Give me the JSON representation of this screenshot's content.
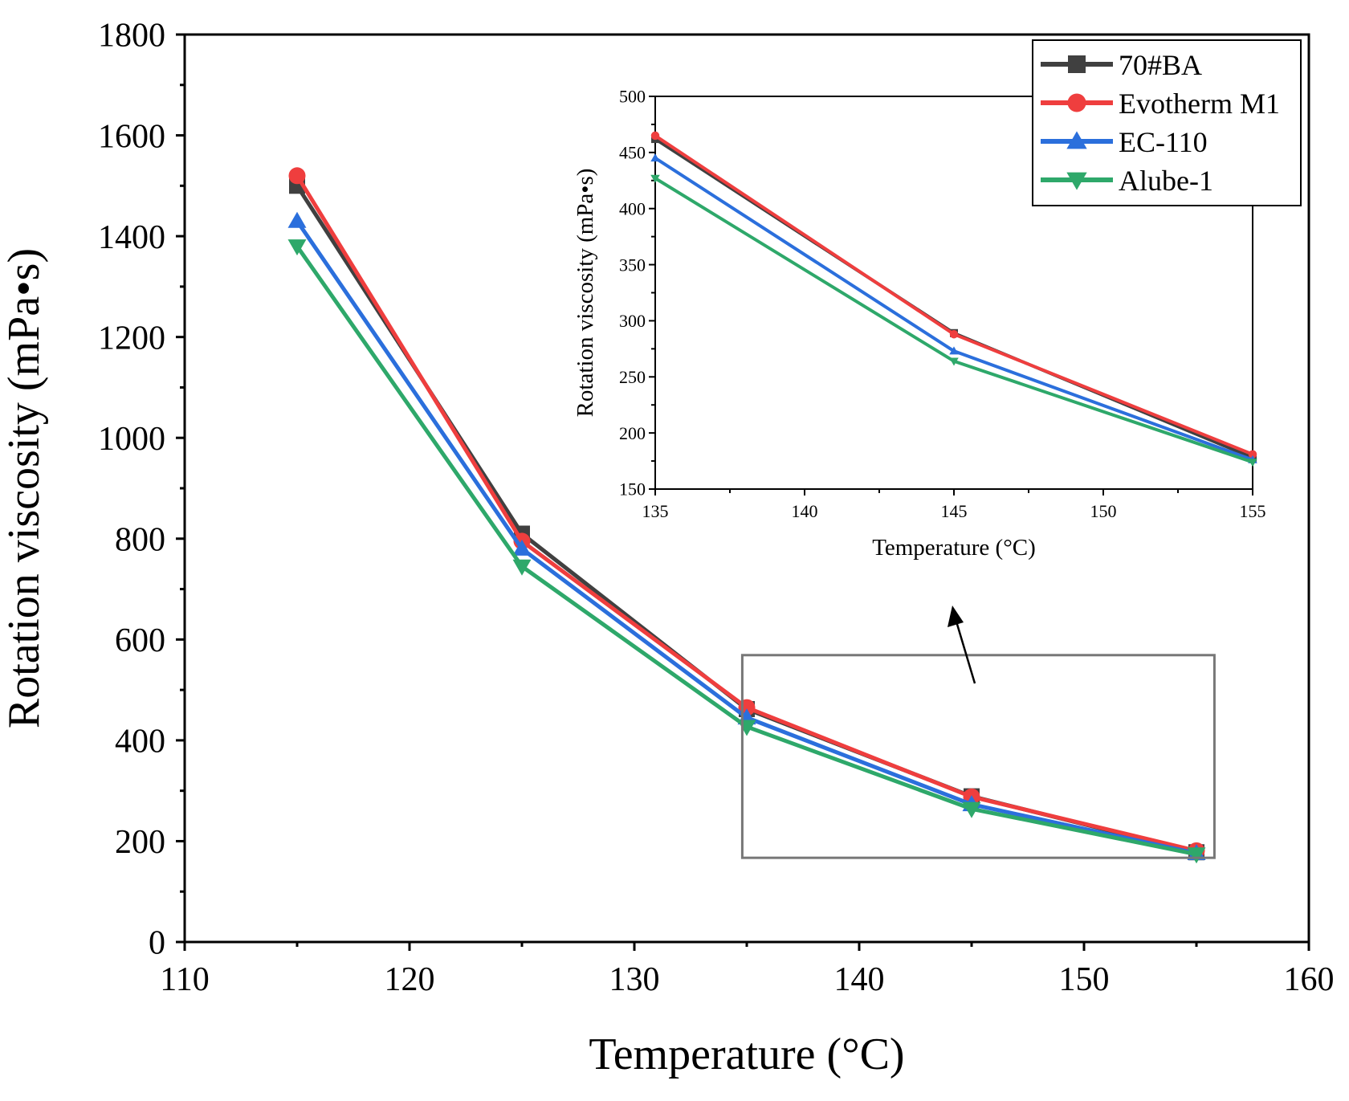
{
  "chart_data": [
    {
      "id": "main",
      "type": "line",
      "xlabel": "Temperature (°C)",
      "ylabel": "Rotation viscosity (mPa•s)",
      "xlim": [
        110,
        160
      ],
      "ylim": [
        0,
        1800
      ],
      "xticks": [
        110,
        120,
        130,
        140,
        150,
        160
      ],
      "yticks": [
        0,
        200,
        400,
        600,
        800,
        1000,
        1200,
        1400,
        1600,
        1800
      ],
      "x": [
        115,
        125,
        135,
        145,
        155
      ],
      "series": [
        {
          "name": "70#BA",
          "color": "#404040",
          "marker": "square",
          "values": [
            1500,
            810,
            462,
            289,
            178
          ]
        },
        {
          "name": "Evotherm M1",
          "color": "#ef3e3e",
          "marker": "circle",
          "values": [
            1520,
            795,
            465,
            288,
            181
          ]
        },
        {
          "name": "EC-110",
          "color": "#2b6fdc",
          "marker": "triangle-up",
          "values": [
            1430,
            780,
            445,
            273,
            176
          ]
        },
        {
          "name": "Alube-1",
          "color": "#2ea86a",
          "marker": "triangle-down",
          "values": [
            1380,
            745,
            427,
            264,
            174
          ]
        }
      ],
      "legend": "top-right",
      "annotations": [
        "zoom-box around 135-155 °C",
        "arrow pointing to inset"
      ]
    },
    {
      "id": "inset",
      "type": "line",
      "xlabel": "Temperature (°C)",
      "ylabel": "Rotation viscosity (mPa•s)",
      "xlim": [
        135,
        155
      ],
      "ylim": [
        150,
        500
      ],
      "xticks": [
        135,
        140,
        145,
        150,
        155
      ],
      "yticks": [
        150,
        200,
        250,
        300,
        350,
        400,
        450,
        500
      ],
      "x": [
        135,
        145,
        155
      ],
      "series": [
        {
          "name": "70#BA",
          "color": "#404040",
          "marker": "square",
          "values": [
            462,
            289,
            178
          ]
        },
        {
          "name": "Evotherm M1",
          "color": "#ef3e3e",
          "marker": "circle",
          "values": [
            465,
            288,
            181
          ]
        },
        {
          "name": "EC-110",
          "color": "#2b6fdc",
          "marker": "triangle-up",
          "values": [
            445,
            273,
            176
          ]
        },
        {
          "name": "Alube-1",
          "color": "#2ea86a",
          "marker": "triangle-down",
          "values": [
            427,
            264,
            174
          ]
        }
      ]
    }
  ]
}
